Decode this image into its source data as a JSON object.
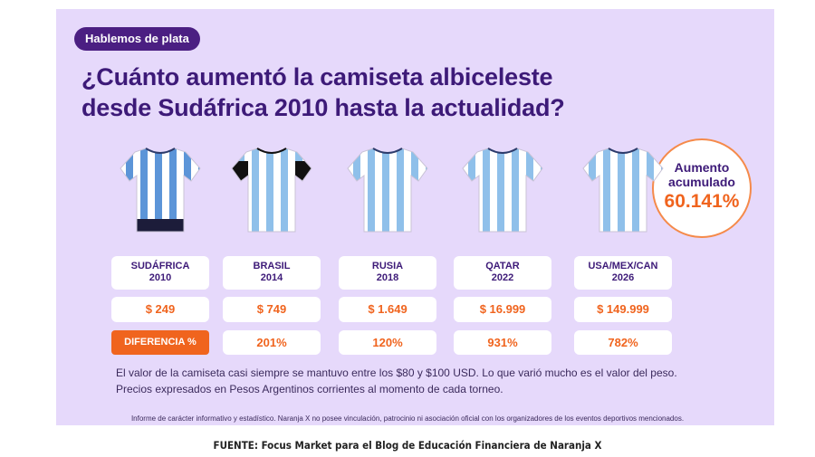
{
  "header": {
    "badge": "Hablemos de plata",
    "title": [
      "¿Cuánto aumentó la camiseta albiceleste",
      "desde Sudáfrica 2010 hasta la actualidad?"
    ]
  },
  "callout": {
    "label": [
      "Aumento",
      "acumulado"
    ],
    "value": "60.141%"
  },
  "table": {
    "columns": [
      {
        "name": [
          "SUDÁFRICA",
          "2010"
        ],
        "price": "$ 249"
      },
      {
        "name": [
          "BRASIL",
          "2014"
        ],
        "price": "$ 749"
      },
      {
        "name": [
          "RUSIA",
          "2018"
        ],
        "price": "$ 1.649"
      },
      {
        "name": [
          "QATAR",
          "2022"
        ],
        "price": "$ 16.999"
      },
      {
        "name": [
          "USA/MEX/CAN",
          "2026"
        ],
        "price": "$ 149.999"
      }
    ],
    "row_label": "DIFERENCIA %",
    "differences": [
      "201%",
      "120%",
      "931%",
      "782%"
    ]
  },
  "notes": [
    "El valor de la camiseta casi siempre se mantuvo entre los $80 y $100 USD. Lo que varió mucho es el valor del peso.",
    "Precios expresados en Pesos Argentinos corrientes al momento de cada torneo."
  ],
  "disclaimer": "Informe de carácter informativo y estadístico. Naranja X no posee vinculación, patrocinio ni asociación oficial con los organizadores de los eventos deportivos mencionados.",
  "source": "FUENTE: Focus Market para el Blog de Educación Financiera de Naranja X"
}
